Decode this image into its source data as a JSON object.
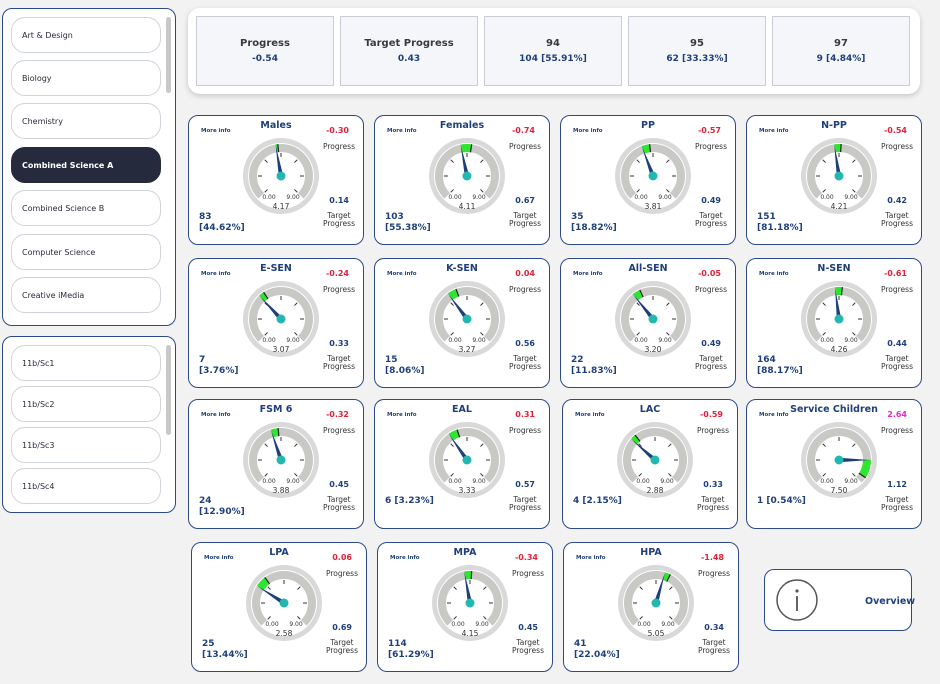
{
  "subjects": [
    {
      "label": "Art & Design",
      "active": false
    },
    {
      "label": "Biology",
      "active": false
    },
    {
      "label": "Chemistry",
      "active": false
    },
    {
      "label": "Combined Science A",
      "active": true
    },
    {
      "label": "Combined Science B",
      "active": false
    },
    {
      "label": "Computer Science",
      "active": false
    },
    {
      "label": "Creative iMedia",
      "active": false
    }
  ],
  "classes": [
    {
      "label": "11b/Sc1"
    },
    {
      "label": "11b/Sc2"
    },
    {
      "label": "11b/Sc3"
    },
    {
      "label": "11b/Sc4"
    }
  ],
  "kpis": [
    {
      "title": "Progress",
      "value": "-0.54"
    },
    {
      "title": "Target Progress",
      "value": "0.43"
    },
    {
      "title": "94",
      "value": "104 [55.91%]"
    },
    {
      "title": "95",
      "value": "62 [33.33%]"
    },
    {
      "title": "97",
      "value": "9 [4.84%]"
    }
  ],
  "common": {
    "more_info": "More info",
    "progress_label": "Progress",
    "target_label_1": "Target",
    "target_label_2": "Progress",
    "gauge_min": "0.00",
    "gauge_max": "9.00"
  },
  "colors": {
    "negative": "#e0223b",
    "positive": "#e0223b",
    "service": "#e628c8",
    "needle": "#1f3f7a",
    "hub": "#22b8b0",
    "target_band": "#2ee62e"
  },
  "cards": [
    {
      "title": "Males",
      "progress": "-0.30",
      "target": "0.14",
      "count": "83",
      "pct": "[44.62%]",
      "value": "4.17",
      "val": 4.17,
      "tgt": 4.31,
      "pcolor": "#e0223b"
    },
    {
      "title": "Females",
      "progress": "-0.74",
      "target": "0.67",
      "count": "103",
      "pct": "[55.38%]",
      "value": "4.11",
      "val": 4.11,
      "tgt": 4.78,
      "pcolor": "#e0223b"
    },
    {
      "title": "PP",
      "progress": "-0.57",
      "target": "0.49",
      "count": "35",
      "pct": "[18.82%]",
      "value": "3.81",
      "val": 3.81,
      "tgt": 4.3,
      "pcolor": "#e0223b"
    },
    {
      "title": "N-PP",
      "progress": "-0.54",
      "target": "0.42",
      "count": "151",
      "pct": "[81.18%]",
      "value": "4.21",
      "val": 4.21,
      "tgt": 4.63,
      "pcolor": "#e0223b"
    },
    {
      "title": "E-SEN",
      "progress": "-0.24",
      "target": "0.33",
      "count": "7",
      "pct": "[3.76%]",
      "value": "3.07",
      "val": 3.07,
      "tgt": 3.4,
      "pcolor": "#e0223b"
    },
    {
      "title": "K-SEN",
      "progress": "0.04",
      "target": "0.56",
      "count": "15",
      "pct": "[8.06%]",
      "value": "3.27",
      "val": 3.27,
      "tgt": 3.83,
      "pcolor": "#e0223b"
    },
    {
      "title": "All-SEN",
      "progress": "-0.05",
      "target": "0.49",
      "count": "22",
      "pct": "[11.83%]",
      "value": "3.20",
      "val": 3.2,
      "tgt": 3.69,
      "pcolor": "#e0223b"
    },
    {
      "title": "N-SEN",
      "progress": "-0.61",
      "target": "0.44",
      "count": "164",
      "pct": "[88.17%]",
      "value": "4.26",
      "val": 4.26,
      "tgt": 4.7,
      "pcolor": "#e0223b"
    },
    {
      "title": "FSM 6",
      "progress": "-0.32",
      "target": "0.45",
      "count": "24",
      "pct": "[12.90%]",
      "value": "3.88",
      "val": 3.88,
      "tgt": 4.33,
      "pcolor": "#e0223b"
    },
    {
      "title": "EAL",
      "progress": "0.31",
      "target": "0.57",
      "count": "6 [3.23%]",
      "pct": "",
      "value": "3.33",
      "val": 3.33,
      "tgt": 3.9,
      "pcolor": "#e0223b"
    },
    {
      "title": "LAC",
      "progress": "-0.59",
      "target": "0.33",
      "count": "4 [2.15%]",
      "pct": "",
      "value": "2.88",
      "val": 2.88,
      "tgt": 3.21,
      "pcolor": "#e0223b"
    },
    {
      "title": "Service Children",
      "progress": "2.64",
      "target": "1.12",
      "count": "1 [0.54%]",
      "pct": "",
      "value": "7.50",
      "val": 7.5,
      "tgt": 8.62,
      "pcolor": "#e628c8"
    },
    {
      "title": "LPA",
      "progress": "0.06",
      "target": "0.69",
      "count": "25",
      "pct": "[13.44%]",
      "value": "2.58",
      "val": 2.58,
      "tgt": 3.27,
      "pcolor": "#e0223b"
    },
    {
      "title": "MPA",
      "progress": "-0.34",
      "target": "0.45",
      "count": "114",
      "pct": "[61.29%]",
      "value": "4.15",
      "val": 4.15,
      "tgt": 4.6,
      "pcolor": "#e0223b"
    },
    {
      "title": "HPA",
      "progress": "-1.48",
      "target": "0.34",
      "count": "41",
      "pct": "[22.04%]",
      "value": "5.05",
      "val": 5.05,
      "tgt": 5.39,
      "pcolor": "#e0223b"
    }
  ],
  "overview": {
    "label": "Overview",
    "icon": "info-icon"
  }
}
